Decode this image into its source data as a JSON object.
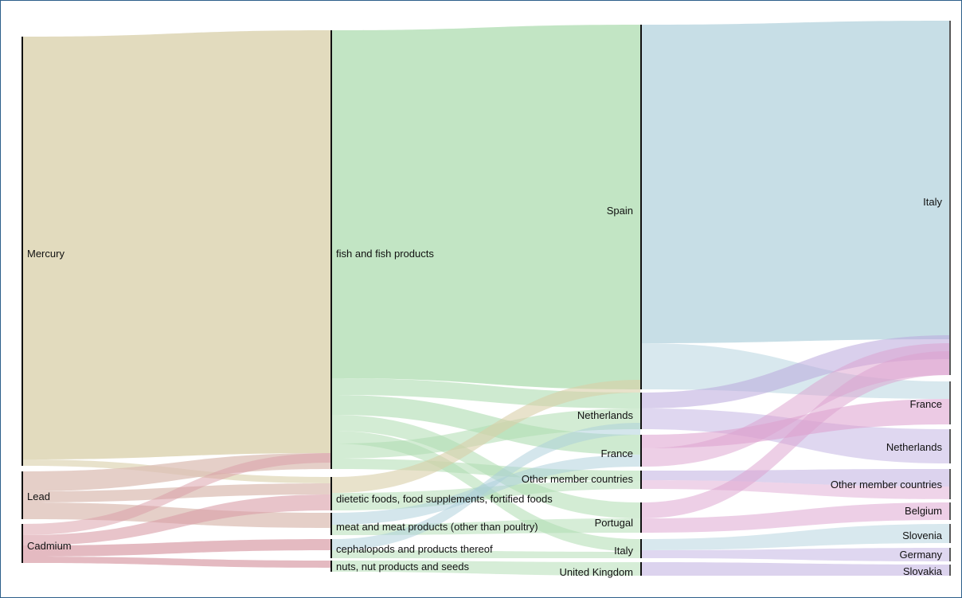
{
  "chart_data": {
    "type": "sankey",
    "columns": [
      {
        "nodes": [
          {
            "name": "Mercury"
          },
          {
            "name": "Lead"
          },
          {
            "name": "Cadmium"
          }
        ]
      },
      {
        "nodes": [
          {
            "name": "fish and fish products"
          },
          {
            "name": "dietetic foods, food supplements, fortified foods"
          },
          {
            "name": "meat and meat products (other than poultry)"
          },
          {
            "name": "cephalopods and products thereof"
          },
          {
            "name": "nuts, nut products and seeds"
          }
        ]
      },
      {
        "nodes": [
          {
            "name": "Spain"
          },
          {
            "name": "Netherlands"
          },
          {
            "name": "France"
          },
          {
            "name": "Other member countries"
          },
          {
            "name": "Portugal"
          },
          {
            "name": "Italy"
          },
          {
            "name": "United Kingdom"
          }
        ]
      },
      {
        "nodes": [
          {
            "name": "Italy"
          },
          {
            "name": "France"
          },
          {
            "name": "Netherlands"
          },
          {
            "name": "Other member countries"
          },
          {
            "name": "Belgium"
          },
          {
            "name": "Slovenia"
          },
          {
            "name": "Germany"
          },
          {
            "name": "Slovakia"
          }
        ]
      }
    ],
    "colors": {
      "mercury": "#d8cfa8",
      "lead": "#dcbfb5",
      "cadmium": "#d99ca6",
      "fish": "#aedcb0",
      "dest": "#a9cdd9",
      "purple": "#b9a7dd",
      "pink": "#dc9fce"
    }
  }
}
